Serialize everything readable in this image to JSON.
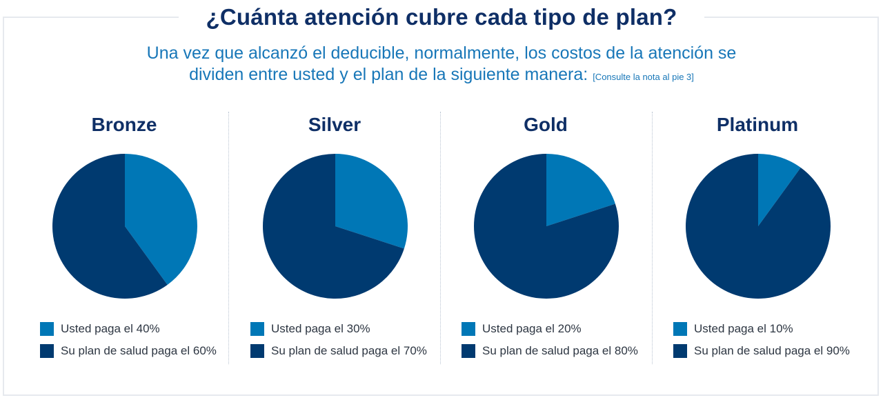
{
  "header": {
    "title": "¿Cuánta atención cubre cada tipo de plan?",
    "subtitle_line1": "Una vez que alcanzó el deducible, normalmente, los costos de la atención se",
    "subtitle_line2": "dividen entre usted y el plan de la siguiente manera:",
    "footnote": "[Consulte la nota al pie 3]"
  },
  "colors": {
    "usted": "#0077b6",
    "plan": "#003a70"
  },
  "chart_data": [
    {
      "type": "pie",
      "title": "Bronze",
      "categories": [
        "Usted paga el 40%",
        "Su plan de salud paga el 60%"
      ],
      "values": [
        40,
        60
      ]
    },
    {
      "type": "pie",
      "title": "Silver",
      "categories": [
        "Usted paga el 30%",
        "Su plan de salud paga el 70%"
      ],
      "values": [
        30,
        70
      ]
    },
    {
      "type": "pie",
      "title": "Gold",
      "categories": [
        "Usted paga el 20%",
        "Su plan de salud paga el 80%"
      ],
      "values": [
        20,
        80
      ]
    },
    {
      "type": "pie",
      "title": "Platinum",
      "categories": [
        "Usted paga el 10%",
        "Su plan de salud paga el 90%"
      ],
      "values": [
        10,
        90
      ]
    }
  ]
}
